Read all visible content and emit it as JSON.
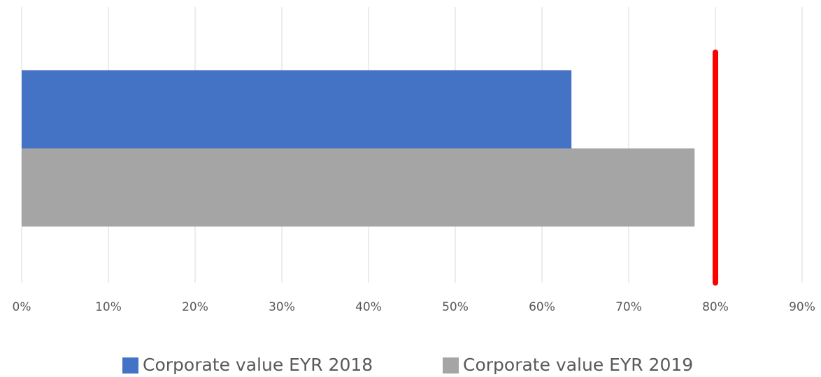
{
  "chart_data": {
    "type": "bar",
    "orientation": "horizontal",
    "categories": [
      null
    ],
    "series": [
      {
        "name": "Corporate value EYR 2018",
        "color": "#4472c4",
        "values": [
          63.4
        ]
      },
      {
        "name": "Corporate value EYR 2019",
        "color": "#a5a5a5",
        "values": [
          77.6
        ]
      }
    ],
    "target": {
      "value": 80,
      "color": "#ff0000"
    },
    "xlim": [
      0,
      90
    ],
    "xticks": [
      {
        "value": 0,
        "label": "0%"
      },
      {
        "value": 10,
        "label": "10%"
      },
      {
        "value": 20,
        "label": "20%"
      },
      {
        "value": 30,
        "label": "30%"
      },
      {
        "value": 40,
        "label": "40%"
      },
      {
        "value": 50,
        "label": "50%"
      },
      {
        "value": 60,
        "label": "60%"
      },
      {
        "value": 70,
        "label": "70%"
      },
      {
        "value": 80,
        "label": "80%"
      },
      {
        "value": 90,
        "label": "90%"
      }
    ],
    "grid": true,
    "legend": "bottom"
  }
}
